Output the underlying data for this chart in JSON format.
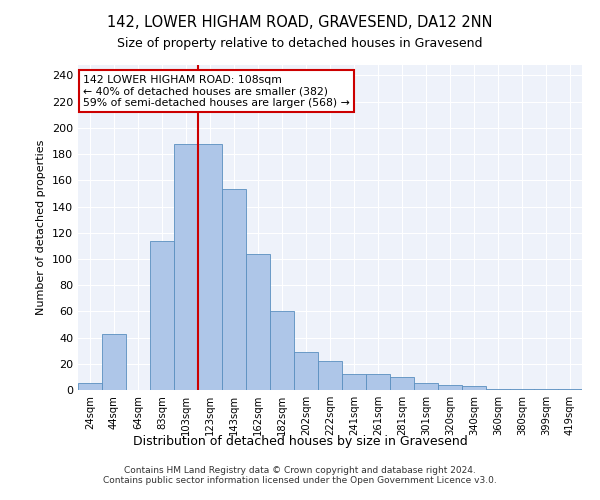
{
  "title": "142, LOWER HIGHAM ROAD, GRAVESEND, DA12 2NN",
  "subtitle": "Size of property relative to detached houses in Gravesend",
  "xlabel": "Distribution of detached houses by size in Gravesend",
  "ylabel": "Number of detached properties",
  "categories": [
    "24sqm",
    "44sqm",
    "64sqm",
    "83sqm",
    "103sqm",
    "123sqm",
    "143sqm",
    "162sqm",
    "182sqm",
    "202sqm",
    "222sqm",
    "241sqm",
    "261sqm",
    "281sqm",
    "301sqm",
    "320sqm",
    "340sqm",
    "360sqm",
    "380sqm",
    "399sqm",
    "419sqm"
  ],
  "values": [
    5,
    43,
    0,
    114,
    188,
    188,
    153,
    104,
    60,
    29,
    22,
    12,
    12,
    10,
    5,
    4,
    3,
    1,
    1,
    1,
    1
  ],
  "bar_color": "#aec6e8",
  "bar_edge_color": "#5a8fc0",
  "vline_index": 4,
  "annotation_title": "142 LOWER HIGHAM ROAD: 108sqm",
  "annotation_line1": "← 40% of detached houses are smaller (382)",
  "annotation_line2": "59% of semi-detached houses are larger (568) →",
  "annotation_box_color": "#ffffff",
  "annotation_box_edge": "#cc0000",
  "vline_color": "#cc0000",
  "ylim": [
    0,
    248
  ],
  "yticks": [
    0,
    20,
    40,
    60,
    80,
    100,
    120,
    140,
    160,
    180,
    200,
    220,
    240
  ],
  "background_color": "#eef2fa",
  "footer1": "Contains HM Land Registry data © Crown copyright and database right 2024.",
  "footer2": "Contains public sector information licensed under the Open Government Licence v3.0."
}
